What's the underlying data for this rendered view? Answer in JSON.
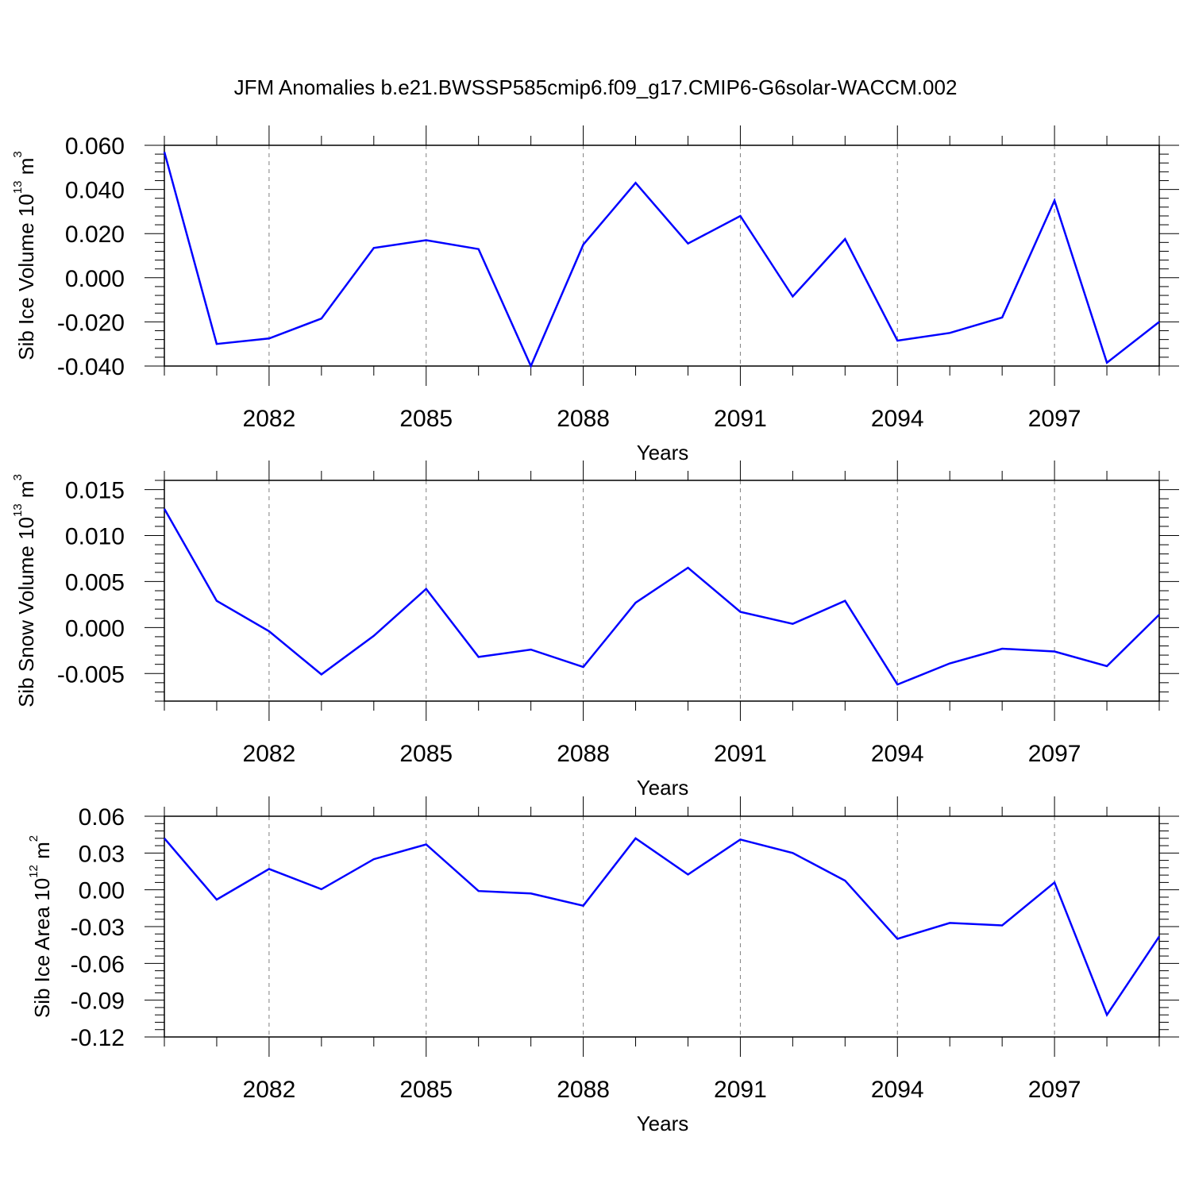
{
  "title": "JFM Anomalies b.e21.BWSSP585cmip6.f09_g17.CMIP6-G6solar-WACCM.002",
  "colors": {
    "line": "#0000ff",
    "axis": "#000000",
    "grid": "#808080"
  },
  "chart_data": [
    {
      "type": "line",
      "xlabel": "Years",
      "ylabel": {
        "main": "Sib Ice Volume 10",
        "sup": "13",
        "unit": " m",
        "unit_sup": "3"
      },
      "xlim": [
        2080,
        2099
      ],
      "ylim": [
        -0.04,
        0.06
      ],
      "xticks": [
        2082,
        2085,
        2088,
        2091,
        2094,
        2097
      ],
      "xtick_labels": [
        "2082",
        "2085",
        "2088",
        "2091",
        "2094",
        "2097"
      ],
      "yticks": [
        -0.04,
        -0.02,
        0.0,
        0.02,
        0.04,
        0.06
      ],
      "ytick_labels": [
        "-0.040",
        "-0.020",
        "0.000",
        "0.020",
        "0.040",
        "0.060"
      ],
      "grid": "vertical dashed at major x ticks",
      "x": [
        2080,
        2081,
        2082,
        2083,
        2084,
        2085,
        2086,
        2087,
        2088,
        2089,
        2090,
        2091,
        2092,
        2093,
        2094,
        2095,
        2096,
        2097,
        2098,
        2099
      ],
      "y": [
        0.057,
        -0.03,
        -0.0275,
        -0.0185,
        0.0135,
        0.017,
        0.013,
        -0.04,
        0.015,
        0.043,
        0.0155,
        0.028,
        -0.0085,
        0.0175,
        -0.0285,
        -0.025,
        -0.018,
        0.035,
        -0.0385,
        -0.02
      ]
    },
    {
      "type": "line",
      "xlabel": "Years",
      "ylabel": {
        "main": "Sib Snow Volume 10",
        "sup": "13",
        "unit": " m",
        "unit_sup": "3"
      },
      "xlim": [
        2080,
        2099
      ],
      "ylim": [
        -0.008,
        0.016
      ],
      "xticks": [
        2082,
        2085,
        2088,
        2091,
        2094,
        2097
      ],
      "xtick_labels": [
        "2082",
        "2085",
        "2088",
        "2091",
        "2094",
        "2097"
      ],
      "yticks": [
        -0.005,
        0.0,
        0.005,
        0.01,
        0.015
      ],
      "ytick_labels": [
        "-0.005",
        "0.000",
        "0.005",
        "0.010",
        "0.015"
      ],
      "grid": "vertical dashed at major x ticks",
      "x": [
        2080,
        2081,
        2082,
        2083,
        2084,
        2085,
        2086,
        2087,
        2088,
        2089,
        2090,
        2091,
        2092,
        2093,
        2094,
        2095,
        2096,
        2097,
        2098,
        2099
      ],
      "y": [
        0.0129,
        0.0029,
        -0.0004,
        -0.0051,
        -0.0009,
        0.0042,
        -0.0032,
        -0.0024,
        -0.0043,
        0.0027,
        0.0065,
        0.0017,
        0.0004,
        0.0029,
        -0.0062,
        -0.0039,
        -0.0023,
        -0.0026,
        -0.0042,
        0.0014
      ]
    },
    {
      "type": "line",
      "xlabel": "Years",
      "ylabel": {
        "main": "Sib Ice Area 10",
        "sup": "12",
        "unit": " m",
        "unit_sup": "2"
      },
      "xlim": [
        2080,
        2099
      ],
      "ylim": [
        -0.12,
        0.06
      ],
      "xticks": [
        2082,
        2085,
        2088,
        2091,
        2094,
        2097
      ],
      "xtick_labels": [
        "2082",
        "2085",
        "2088",
        "2091",
        "2094",
        "2097"
      ],
      "yticks": [
        -0.12,
        -0.09,
        -0.06,
        -0.03,
        0.0,
        0.03,
        0.06
      ],
      "ytick_labels": [
        "-0.12",
        "-0.09",
        "-0.06",
        "-0.03",
        "0.00",
        "0.03",
        "0.06"
      ],
      "grid": "vertical dashed at major x ticks",
      "x": [
        2080,
        2081,
        2082,
        2083,
        2084,
        2085,
        2086,
        2087,
        2088,
        2089,
        2090,
        2091,
        2092,
        2093,
        2094,
        2095,
        2096,
        2097,
        2098,
        2099
      ],
      "y": [
        0.042,
        -0.008,
        0.017,
        0.0005,
        0.025,
        0.037,
        -0.001,
        -0.003,
        -0.013,
        0.042,
        0.0125,
        0.041,
        0.03,
        0.0075,
        -0.04,
        -0.027,
        -0.029,
        0.006,
        -0.102,
        -0.038
      ]
    }
  ]
}
